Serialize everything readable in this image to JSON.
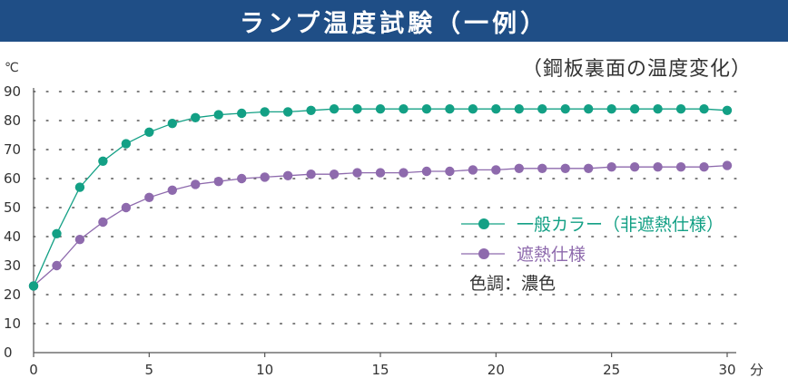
{
  "header": {
    "title": "ランプ温度試験（一例）",
    "subtitle": "（鋼板裏面の温度変化）"
  },
  "chart_data": {
    "type": "line",
    "title": "ランプ温度試験（一例）",
    "subtitle": "（鋼板裏面の温度変化）",
    "ylabel": "℃",
    "xlabel": "分",
    "xlim": [
      0,
      30
    ],
    "ylim": [
      0,
      90
    ],
    "xticks": [
      0,
      5,
      10,
      15,
      20,
      25,
      30
    ],
    "yticks": [
      0,
      10,
      20,
      30,
      40,
      50,
      60,
      70,
      80,
      90
    ],
    "grid": "dotted-horizontal",
    "legend_position": "right",
    "x": [
      0,
      1,
      2,
      3,
      4,
      5,
      6,
      7,
      8,
      9,
      10,
      11,
      12,
      13,
      14,
      15,
      16,
      17,
      18,
      19,
      20,
      21,
      22,
      23,
      24,
      25,
      26,
      27,
      28,
      29,
      30
    ],
    "series": [
      {
        "name": "一般カラー（非遮熱仕様）",
        "color": "#13a085",
        "values": [
          23,
          41,
          57,
          66,
          72,
          76,
          79,
          81,
          82,
          82.5,
          83,
          83,
          83.5,
          84,
          84,
          84,
          84,
          84,
          84,
          84,
          84,
          84,
          84,
          84,
          84,
          84,
          84,
          84,
          84,
          84,
          83.5
        ]
      },
      {
        "name": "遮熱仕様",
        "color": "#8e6aad",
        "values": [
          23,
          30,
          39,
          45,
          50,
          53.5,
          56,
          58,
          59,
          60,
          60.5,
          61,
          61.5,
          61.5,
          62,
          62,
          62,
          62.5,
          62.5,
          63,
          63,
          63.5,
          63.5,
          63.5,
          63.5,
          64,
          64,
          64,
          64,
          64,
          64.5
        ]
      }
    ],
    "annotation": "色調：濃色"
  }
}
